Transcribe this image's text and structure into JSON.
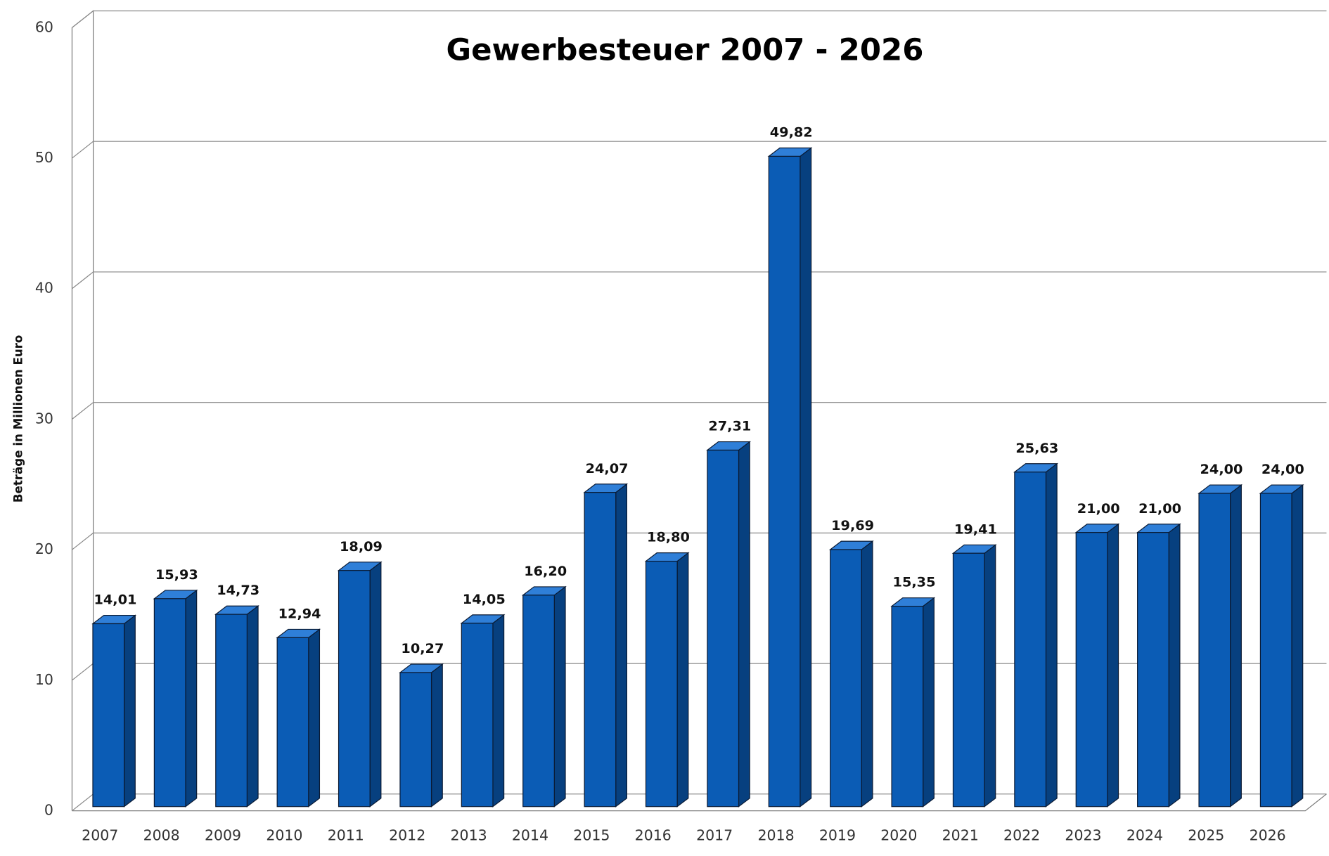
{
  "chart_data": {
    "type": "bar3d",
    "title": "Gewerbesteuer 2007 - 2026",
    "y_label": "Beträge in Millionen Euro",
    "categories": [
      "2007",
      "2008",
      "2009",
      "2010",
      "2011",
      "2012",
      "2013",
      "2014",
      "2015",
      "2016",
      "2017",
      "2018",
      "2019",
      "2020",
      "2021",
      "2022",
      "2023",
      "2024",
      "2025",
      "2026"
    ],
    "values": [
      14.01,
      15.93,
      14.73,
      12.94,
      18.09,
      10.27,
      14.05,
      16.2,
      24.07,
      18.8,
      27.31,
      49.82,
      19.69,
      15.35,
      19.41,
      25.63,
      21.0,
      21.0,
      24.0,
      24.0
    ],
    "value_labels": [
      "14,01",
      "15,93",
      "14,73",
      "12,94",
      "18,09",
      "10,27",
      "14,05",
      "16,20",
      "24,07",
      "18,80",
      "27,31",
      "49,82",
      "19,69",
      "15,35",
      "19,41",
      "25,63",
      "21,00",
      "21,00",
      "24,00",
      "24,00"
    ],
    "color": "#0b5cb5",
    "ylim": [
      0,
      60
    ],
    "yticks": [
      0,
      10,
      20,
      30,
      40,
      50,
      60
    ],
    "grid": true
  }
}
